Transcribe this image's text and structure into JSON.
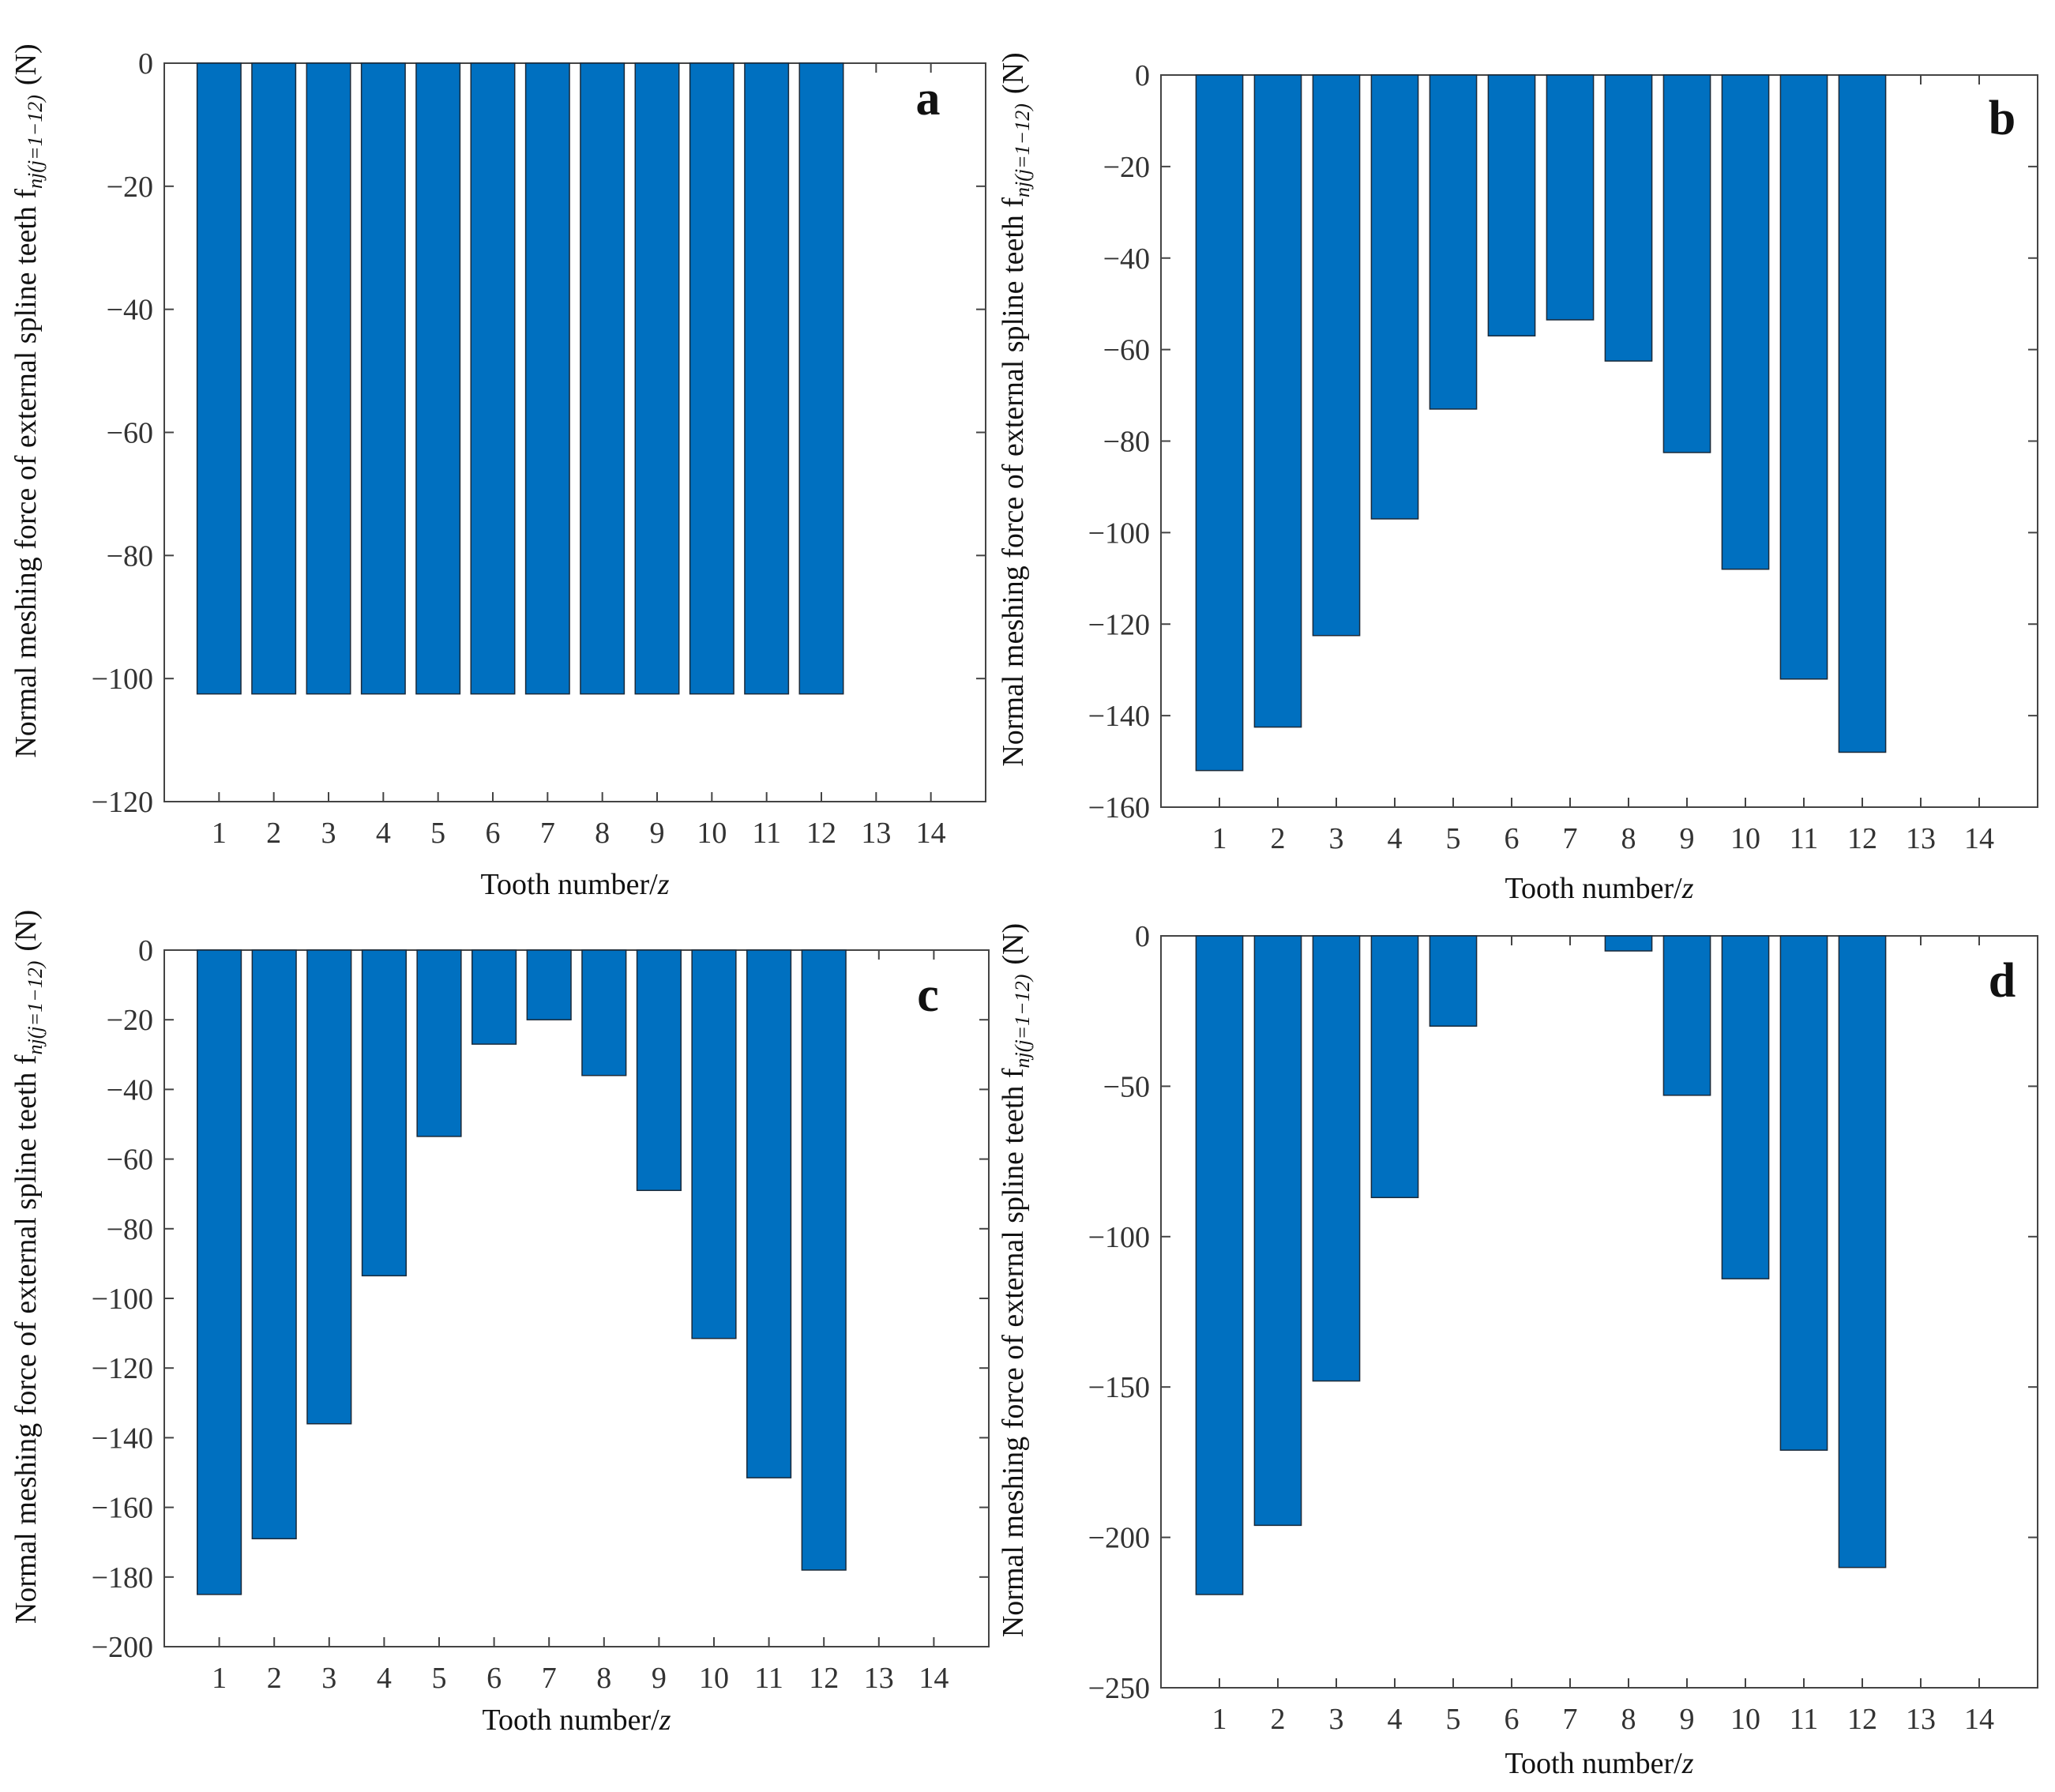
{
  "colors": {
    "bar": "#0070c0",
    "bar_edge": "#1a2a3a",
    "axis": "#444444"
  },
  "chart_data": [
    {
      "type": "bar",
      "panel": "a",
      "categories": [
        1,
        2,
        3,
        4,
        5,
        6,
        7,
        8,
        9,
        10,
        11,
        12,
        13,
        14
      ],
      "values": [
        -102.5,
        -102.5,
        -102.5,
        -102.5,
        -102.5,
        -102.5,
        -102.5,
        -102.5,
        -102.5,
        -102.5,
        -102.5,
        -102.5,
        null,
        null
      ],
      "xlabel": "Tooth number/",
      "xlabel_var": "z",
      "ylabel": "Normal meshing force of external spline teeth f",
      "ylabel_sub": "nj(j=1−12)",
      "ylabel_unit": "(N)",
      "ylim": [
        -120,
        0
      ],
      "yticks": [
        0,
        -20,
        -40,
        -60,
        -80,
        -100,
        -120
      ]
    },
    {
      "type": "bar",
      "panel": "b",
      "categories": [
        1,
        2,
        3,
        4,
        5,
        6,
        7,
        8,
        9,
        10,
        11,
        12,
        13,
        14
      ],
      "values": [
        -152,
        -142.5,
        -122.5,
        -97,
        -73,
        -57,
        -53.5,
        -62.5,
        -82.5,
        -108,
        -132,
        -148,
        null,
        null
      ],
      "xlabel": "Tooth number/",
      "xlabel_var": "z",
      "ylabel": "Normal meshing force of external spline teeth f",
      "ylabel_sub": "nj(j=1−12)",
      "ylabel_unit": "(N)",
      "ylim": [
        -160,
        0
      ],
      "yticks": [
        0,
        -20,
        -40,
        -60,
        -80,
        -100,
        -120,
        -140,
        -160
      ]
    },
    {
      "type": "bar",
      "panel": "c",
      "categories": [
        1,
        2,
        3,
        4,
        5,
        6,
        7,
        8,
        9,
        10,
        11,
        12,
        13,
        14
      ],
      "values": [
        -185,
        -169,
        -136,
        -93.5,
        -53.5,
        -27,
        -20,
        -36,
        -69,
        -111.5,
        -151.5,
        -178,
        null,
        null
      ],
      "xlabel": "Tooth number/",
      "xlabel_var": "z",
      "ylabel": "Normal meshing force of external spline teeth f",
      "ylabel_sub": "nj(j=1−12)",
      "ylabel_unit": "(N)",
      "ylim": [
        -200,
        0
      ],
      "yticks": [
        0,
        -20,
        -40,
        -60,
        -80,
        -100,
        -120,
        -140,
        -160,
        -180,
        -200
      ]
    },
    {
      "type": "bar",
      "panel": "d",
      "categories": [
        1,
        2,
        3,
        4,
        5,
        6,
        7,
        8,
        9,
        10,
        11,
        12,
        13,
        14
      ],
      "values": [
        -219,
        -196,
        -148,
        -87,
        -30,
        0,
        0,
        -5,
        -53,
        -114,
        -171,
        -210,
        null,
        null
      ],
      "xlabel": "Tooth number/",
      "xlabel_var": "z",
      "ylabel": "Normal meshing force of external spline teeth f",
      "ylabel_sub": "nj(j=1−12)",
      "ylabel_unit": "(N)",
      "ylim": [
        -250,
        0
      ],
      "yticks": [
        0,
        -50,
        -100,
        -150,
        -200,
        -250
      ]
    }
  ]
}
